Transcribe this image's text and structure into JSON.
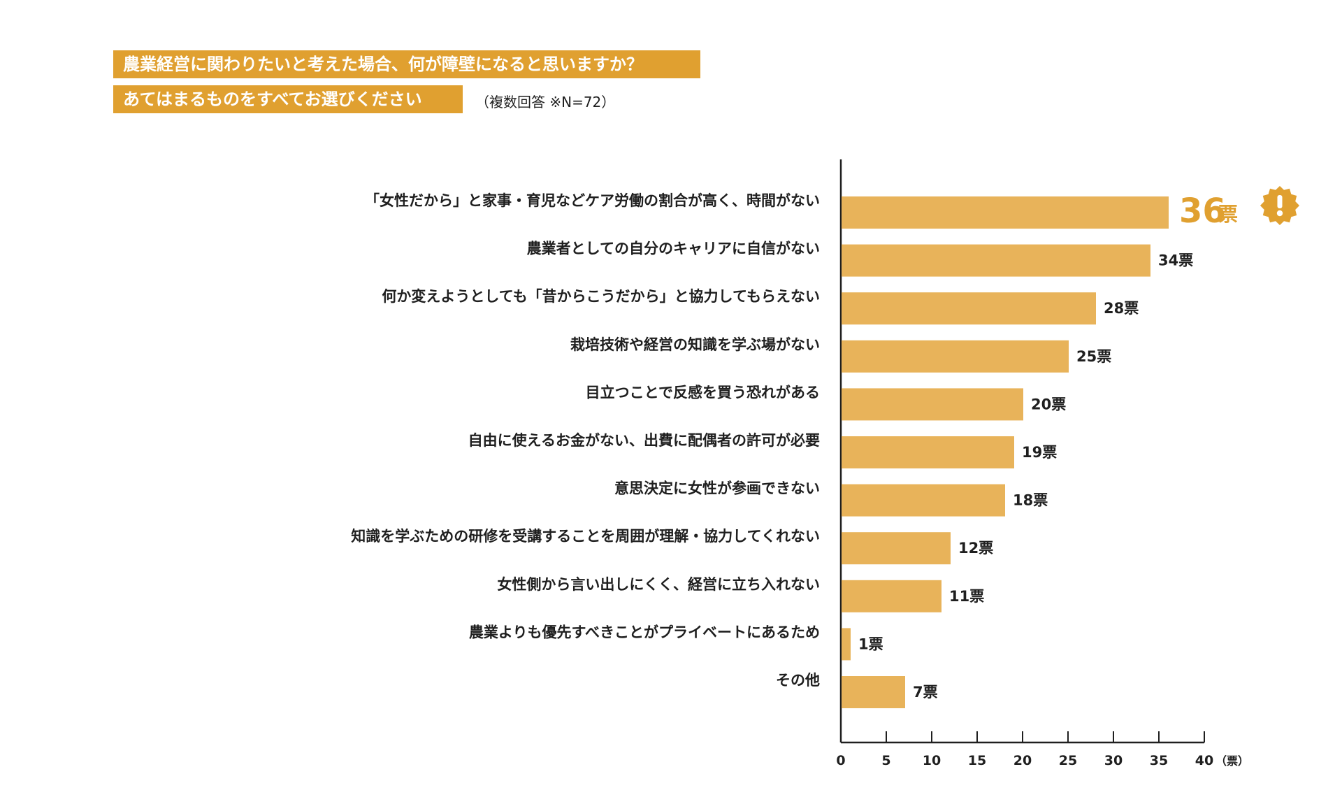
{
  "header": {
    "question_line1": "農業経営に関わりたいと考えた場合、何が障壁になると思いますか？",
    "question_line2": "あてはまるものをすべてお選びください",
    "note": "（複数回答 ※N=72）"
  },
  "chart_data": {
    "type": "bar",
    "orientation": "horizontal",
    "categories": [
      "「女性だから」と家事・育児などケア労働の割合が高く、時間がない",
      "農業者としての自分のキャリアに自信がない",
      "何か変えようとしても「昔からこうだから」と協力してもらえない",
      "栽培技術や経営の知識を学ぶ場がない",
      "目立つことで反感を買う恐れがある",
      "自由に使えるお金がない、出費に配偶者の許可が必要",
      "意思決定に女性が参画できない",
      "知識を学ぶための研修を受講することを周囲が理解・協力してくれない",
      "女性側から言い出しにくく、経営に立ち入れない",
      "農業よりも優先すべきことがプライベートにあるため",
      "その他"
    ],
    "values": [
      36,
      34,
      28,
      25,
      20,
      19,
      18,
      12,
      11,
      1,
      7
    ],
    "value_labels": [
      "36",
      "34票",
      "28票",
      "25票",
      "20票",
      "19票",
      "18票",
      "12票",
      "11票",
      "1票",
      "7票"
    ],
    "highlight_unit": "票",
    "xlim": [
      0,
      40
    ],
    "xticks": [
      "0",
      "5",
      "10",
      "15",
      "20",
      "25",
      "30",
      "35",
      "40"
    ],
    "x_unit": "（票）",
    "highlight_index": 0,
    "grid": false,
    "colors": {
      "bar": "#e8b35a",
      "accent": "#e0a030",
      "axis": "#1f1f1f"
    }
  }
}
